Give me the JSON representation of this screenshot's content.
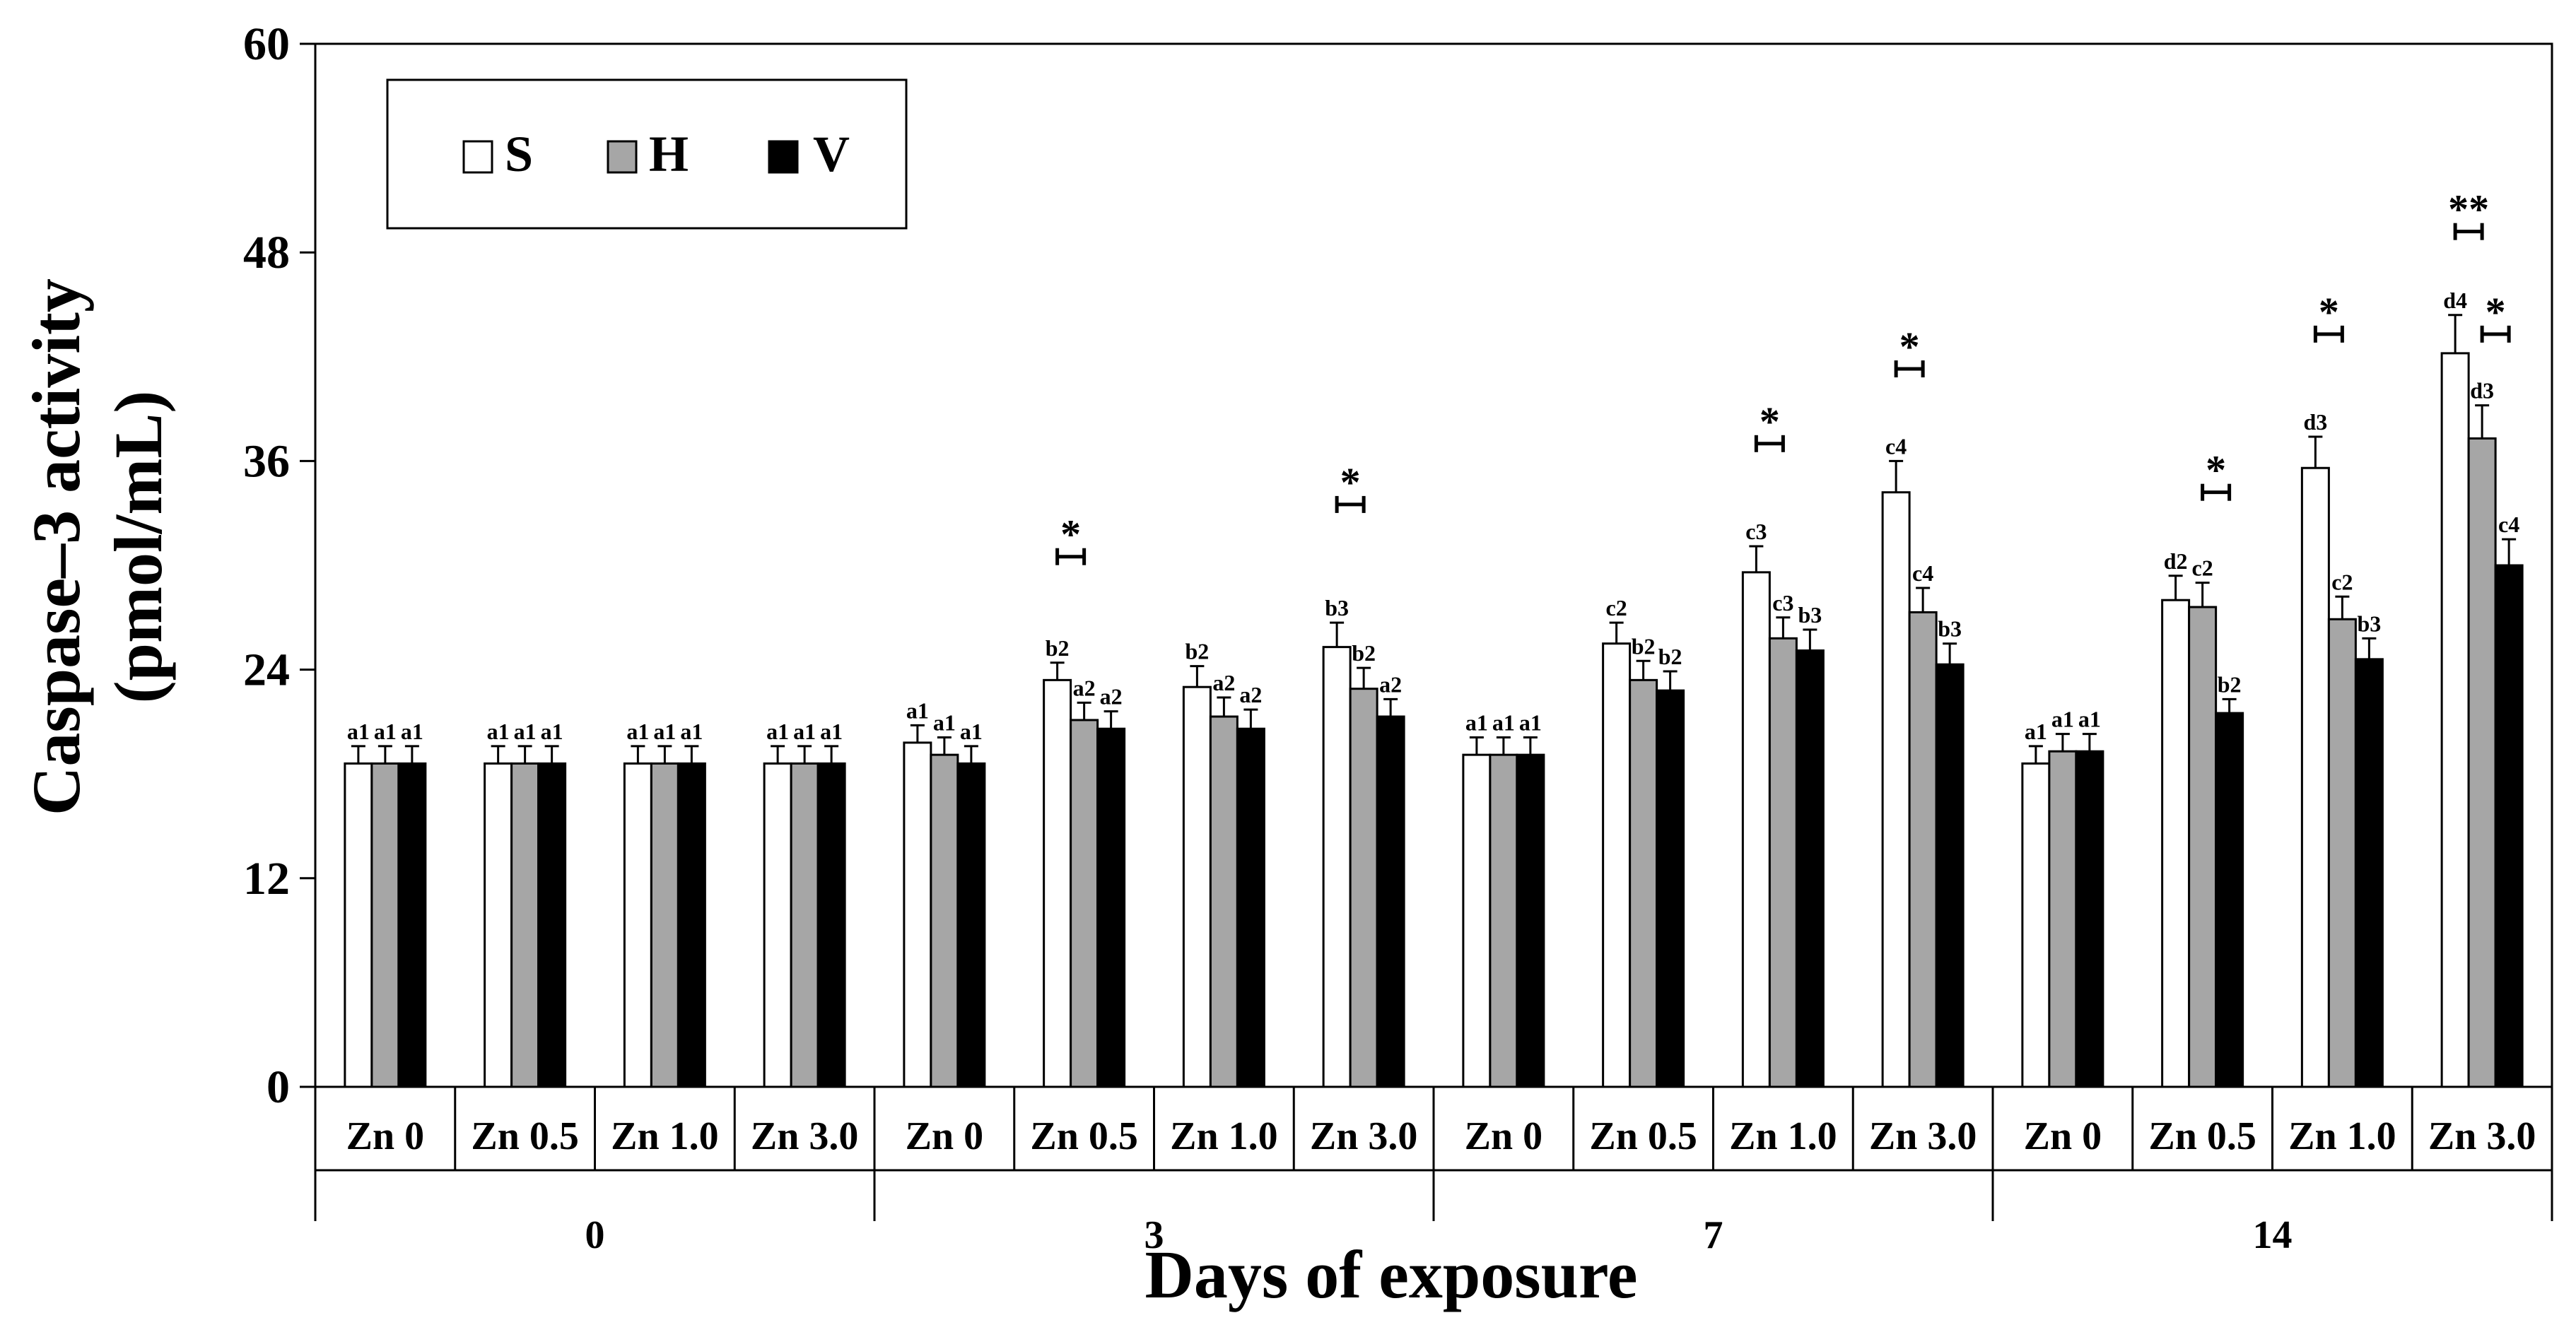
{
  "chart_data": {
    "type": "bar",
    "title": "",
    "ylabel_line1": "Caspase–3 activity",
    "ylabel_line2": "(pmol/mL)",
    "xlabel": "Days of exposure",
    "ylim": [
      0,
      60
    ],
    "yticks": [
      "0",
      "12",
      "24",
      "36",
      "48",
      "60"
    ],
    "legend": {
      "placement": "top-left",
      "entries": [
        {
          "name": "S",
          "color": "#ffffff"
        },
        {
          "name": "H",
          "color": "#a6a6a6"
        },
        {
          "name": "V",
          "color": "#000000"
        }
      ]
    },
    "groups": [
      {
        "day": "0",
        "treatments": [
          {
            "label": "Zn 0",
            "values": [
              18.6,
              18.6,
              18.6
            ],
            "errors": [
              1.0,
              1.0,
              1.0
            ],
            "letters": [
              "a1",
              "a1",
              "a1"
            ],
            "brackets": []
          },
          {
            "label": "Zn 0.5",
            "values": [
              18.6,
              18.6,
              18.6
            ],
            "errors": [
              1.0,
              1.0,
              1.0
            ],
            "letters": [
              "a1",
              "a1",
              "a1"
            ],
            "brackets": []
          },
          {
            "label": "Zn 1.0",
            "values": [
              18.6,
              18.6,
              18.6
            ],
            "errors": [
              1.0,
              1.0,
              1.0
            ],
            "letters": [
              "a1",
              "a1",
              "a1"
            ],
            "brackets": []
          },
          {
            "label": "Zn 3.0",
            "values": [
              18.6,
              18.6,
              18.6
            ],
            "errors": [
              1.0,
              1.0,
              1.0
            ],
            "letters": [
              "a1",
              "a1",
              "a1"
            ],
            "brackets": []
          }
        ]
      },
      {
        "day": "3",
        "treatments": [
          {
            "label": "Zn 0",
            "values": [
              19.8,
              19.1,
              18.6
            ],
            "errors": [
              1.0,
              1.0,
              1.0
            ],
            "letters": [
              "a1",
              "a1",
              "a1"
            ],
            "brackets": []
          },
          {
            "label": "Zn 0.5",
            "values": [
              23.4,
              21.1,
              20.6
            ],
            "errors": [
              1.0,
              1.0,
              1.0
            ],
            "letters": [
              "b2",
              "a2",
              "a2"
            ],
            "brackets": [
              {
                "from": 0,
                "to": 1,
                "y": 30.5,
                "label": "*"
              }
            ]
          },
          {
            "label": "Zn 1.0",
            "values": [
              23.0,
              21.3,
              20.6
            ],
            "errors": [
              1.2,
              1.1,
              1.1
            ],
            "letters": [
              "b2",
              "a2",
              "a2"
            ],
            "brackets": []
          },
          {
            "label": "Zn 3.0",
            "values": [
              25.3,
              22.9,
              21.3
            ],
            "errors": [
              1.4,
              1.2,
              1.0
            ],
            "letters": [
              "b3",
              "b2",
              "a2"
            ],
            "brackets": [
              {
                "from": 0,
                "to": 1,
                "y": 33.5,
                "label": "*"
              }
            ]
          }
        ]
      },
      {
        "day": "7",
        "treatments": [
          {
            "label": "Zn 0",
            "values": [
              19.1,
              19.1,
              19.1
            ],
            "errors": [
              1.0,
              1.0,
              1.0
            ],
            "letters": [
              "a1",
              "a1",
              "a1"
            ],
            "brackets": []
          },
          {
            "label": "Zn 0.5",
            "values": [
              25.5,
              23.4,
              22.8
            ],
            "errors": [
              1.2,
              1.1,
              1.1
            ],
            "letters": [
              "c2",
              "b2",
              "b2"
            ],
            "brackets": []
          },
          {
            "label": "Zn 1.0",
            "values": [
              29.6,
              25.8,
              25.1
            ],
            "errors": [
              1.5,
              1.2,
              1.2
            ],
            "letters": [
              "c3",
              "c3",
              "b3"
            ],
            "brackets": [
              {
                "from": 0,
                "to": 1,
                "y": 37.0,
                "label": "*"
              }
            ]
          },
          {
            "label": "Zn 3.0",
            "values": [
              34.2,
              27.3,
              24.3
            ],
            "errors": [
              1.8,
              1.4,
              1.2
            ],
            "letters": [
              "c4",
              "c4",
              "b3"
            ],
            "brackets": [
              {
                "from": 0,
                "to": 1,
                "y": 41.3,
                "label": "*"
              }
            ]
          }
        ]
      },
      {
        "day": "14",
        "treatments": [
          {
            "label": "Zn 0",
            "values": [
              18.6,
              19.3,
              19.3
            ],
            "errors": [
              1.0,
              1.0,
              1.0
            ],
            "letters": [
              "a1",
              "a1",
              "a1"
            ],
            "brackets": []
          },
          {
            "label": "Zn 0.5",
            "values": [
              28.0,
              27.6,
              21.5
            ],
            "errors": [
              1.4,
              1.4,
              0.8
            ],
            "letters": [
              "d2",
              "c2",
              "b2"
            ],
            "brackets": [
              {
                "from": 1,
                "to": 2,
                "y": 34.2,
                "label": "*"
              }
            ]
          },
          {
            "label": "Zn 1.0",
            "values": [
              35.6,
              26.9,
              24.6
            ],
            "errors": [
              1.8,
              1.3,
              1.2
            ],
            "letters": [
              "d3",
              "c2",
              "b3"
            ],
            "brackets": [
              {
                "from": 0,
                "to": 1,
                "y": 43.3,
                "label": "*"
              }
            ]
          },
          {
            "label": "Zn 3.0",
            "values": [
              42.2,
              37.3,
              30.0
            ],
            "errors": [
              2.2,
              1.9,
              1.5
            ],
            "letters": [
              "d4",
              "d3",
              "c4"
            ],
            "brackets": [
              {
                "from": 0,
                "to": 1,
                "y": 49.2,
                "label": "**"
              },
              {
                "from": 1,
                "to": 2,
                "y": 43.3,
                "label": "*"
              }
            ]
          }
        ]
      }
    ]
  }
}
